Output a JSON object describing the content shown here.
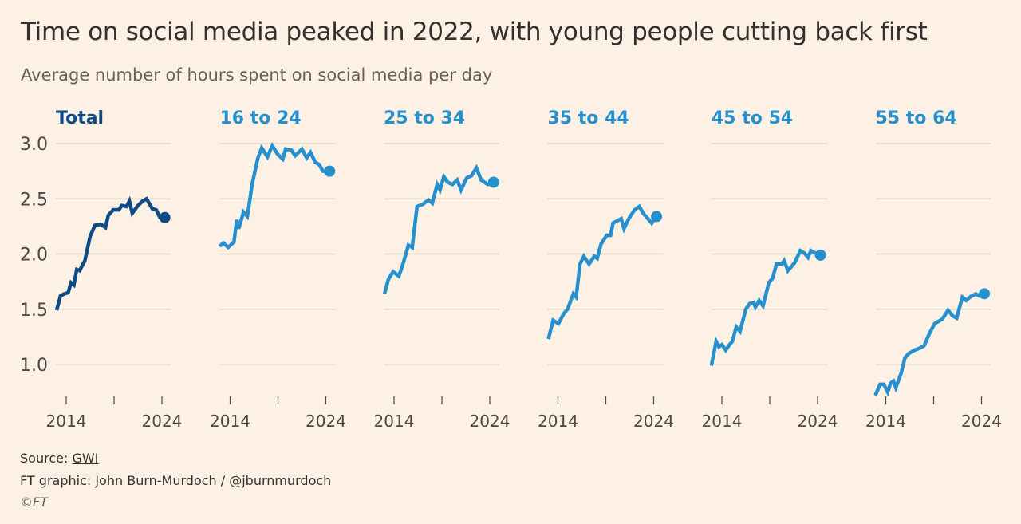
{
  "title": "Time on social media peaked in 2022, with young people cutting back first",
  "subtitle": "Average number of hours spent on social media per day",
  "colors": {
    "background": "#fdf1e5",
    "total": "#0f4a84",
    "age_groups": "#2690cf",
    "grid": "#e3d8cc",
    "text": "#4d4845"
  },
  "chart_data": {
    "type": "line",
    "layout": "small multiples, shared y-axis",
    "ylim": [
      0.7,
      3.0
    ],
    "yticks": [
      3.0,
      2.5,
      2.0,
      1.5,
      1.0
    ],
    "ytick_labels": [
      "3.0",
      "2.5",
      "2.0",
      "1.5",
      "1.0"
    ],
    "xticks": [
      2014,
      2019,
      2024
    ],
    "xtick_labels": [
      "2014",
      "",
      "2024"
    ],
    "grid": true,
    "end_marker": "dot",
    "series": [
      {
        "name": "Total",
        "color": "#0f4a84",
        "x": [
          2013.0,
          2013.4,
          2013.8,
          2014.2,
          2014.5,
          2014.8,
          2015.1,
          2015.4,
          2015.95,
          2016.5,
          2017.0,
          2017.6,
          2018.1,
          2018.4,
          2018.9,
          2019.5,
          2019.8,
          2020.3,
          2020.6,
          2020.9,
          2021.5,
          2022.0,
          2022.4,
          2023.0,
          2023.4,
          2023.8,
          2024.3
        ],
        "y": [
          1.49,
          1.62,
          1.64,
          1.65,
          1.74,
          1.72,
          1.86,
          1.85,
          1.94,
          2.16,
          2.26,
          2.27,
          2.24,
          2.35,
          2.4,
          2.4,
          2.44,
          2.43,
          2.48,
          2.37,
          2.44,
          2.48,
          2.5,
          2.41,
          2.4,
          2.33,
          2.33
        ]
      },
      {
        "name": "16 to 24",
        "color": "#2690cf",
        "x": [
          2012.9,
          2013.3,
          2013.8,
          2014.4,
          2014.7,
          2014.9,
          2015.4,
          2015.8,
          2016.3,
          2016.9,
          2017.3,
          2017.9,
          2018.4,
          2019.0,
          2019.5,
          2019.8,
          2020.4,
          2020.8,
          2021.5,
          2022.0,
          2022.4,
          2022.9,
          2023.3,
          2023.7,
          2024.4
        ],
        "y": [
          2.07,
          2.1,
          2.06,
          2.11,
          2.31,
          2.23,
          2.38,
          2.34,
          2.63,
          2.87,
          2.96,
          2.88,
          2.98,
          2.9,
          2.86,
          2.95,
          2.94,
          2.89,
          2.95,
          2.87,
          2.92,
          2.83,
          2.81,
          2.75,
          2.75
        ]
      },
      {
        "name": "25 to 34",
        "color": "#2690cf",
        "x": [
          2013.0,
          2013.4,
          2013.9,
          2014.5,
          2014.9,
          2015.5,
          2015.9,
          2016.4,
          2017.0,
          2017.6,
          2018.0,
          2018.5,
          2018.8,
          2019.2,
          2019.6,
          2020.1,
          2020.6,
          2021.0,
          2021.6,
          2022.1,
          2022.6,
          2023.1,
          2023.8,
          2024.4
        ],
        "y": [
          1.64,
          1.77,
          1.84,
          1.8,
          1.9,
          2.08,
          2.06,
          2.43,
          2.45,
          2.49,
          2.46,
          2.63,
          2.58,
          2.7,
          2.65,
          2.63,
          2.67,
          2.58,
          2.69,
          2.71,
          2.78,
          2.67,
          2.63,
          2.65
        ]
      },
      {
        "name": "35 to 44",
        "color": "#2690cf",
        "x": [
          2013.0,
          2013.5,
          2014.05,
          2014.6,
          2015.0,
          2015.6,
          2015.9,
          2016.3,
          2016.7,
          2017.25,
          2017.8,
          2018.1,
          2018.5,
          2019.1,
          2019.5,
          2019.75,
          2020.6,
          2020.9,
          2021.4,
          2022.0,
          2022.5,
          2022.9,
          2023.8,
          2024.3
        ],
        "y": [
          1.23,
          1.4,
          1.37,
          1.46,
          1.5,
          1.64,
          1.61,
          1.91,
          1.98,
          1.91,
          1.98,
          1.96,
          2.09,
          2.17,
          2.17,
          2.28,
          2.32,
          2.23,
          2.32,
          2.4,
          2.43,
          2.37,
          2.28,
          2.34
        ]
      },
      {
        "name": "45 to 54",
        "color": "#2690cf",
        "x": [
          2012.9,
          2013.4,
          2013.7,
          2014.0,
          2014.4,
          2014.8,
          2015.1,
          2015.5,
          2015.9,
          2016.5,
          2016.9,
          2017.3,
          2017.5,
          2017.9,
          2018.3,
          2018.9,
          2019.3,
          2019.7,
          2020.25,
          2020.5,
          2020.9,
          2021.6,
          2022.2,
          2022.6,
          2023.0,
          2023.3,
          2023.7,
          2024.3
        ],
        "y": [
          0.99,
          1.21,
          1.16,
          1.18,
          1.13,
          1.18,
          1.21,
          1.34,
          1.3,
          1.5,
          1.55,
          1.56,
          1.52,
          1.58,
          1.53,
          1.74,
          1.78,
          1.91,
          1.91,
          1.94,
          1.85,
          1.92,
          2.03,
          2.01,
          1.97,
          2.03,
          2.01,
          1.99
        ]
      },
      {
        "name": "55 to 64",
        "color": "#2690cf",
        "x": [
          2012.9,
          2013.4,
          2013.8,
          2014.2,
          2014.5,
          2014.8,
          2015.05,
          2015.6,
          2016.0,
          2016.4,
          2017.0,
          2017.6,
          2018.0,
          2018.5,
          2019.1,
          2019.5,
          2019.9,
          2020.5,
          2021.0,
          2021.4,
          2022.0,
          2022.4,
          2022.8,
          2023.4,
          2023.8,
          2024.3
        ],
        "y": [
          0.72,
          0.82,
          0.82,
          0.75,
          0.83,
          0.85,
          0.79,
          0.92,
          1.06,
          1.1,
          1.13,
          1.15,
          1.17,
          1.27,
          1.37,
          1.39,
          1.41,
          1.49,
          1.44,
          1.42,
          1.61,
          1.58,
          1.61,
          1.64,
          1.62,
          1.64
        ]
      }
    ]
  },
  "footer": {
    "source_label": "Source: ",
    "source_link": "GWI",
    "credit": "FT graphic: John Burn-Murdoch / @jburnmurdoch",
    "copyright": "©FT"
  }
}
